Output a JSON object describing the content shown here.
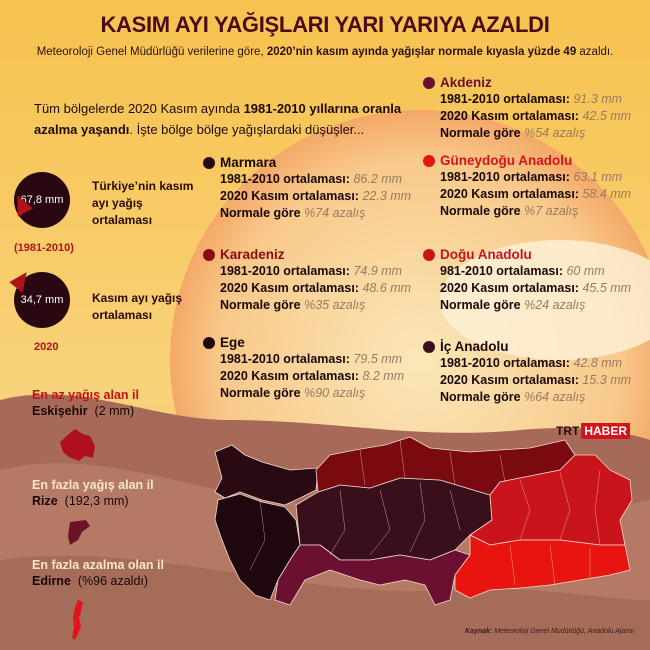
{
  "title": "KASIM AYI YAĞIŞLARI YARI YARIYA AZALDI",
  "subtitle": {
    "pre": "Meteoroloji Genel Müdürlüğü verilerine göre, ",
    "bold": "2020’nin kasım ayında yağışlar normale kıyasla yüzde 49",
    "post": " azaldı."
  },
  "intro": {
    "pre": "Tüm bölgelerde 2020 Kasım ayında ",
    "bold": "1981-2010 yıllarına oranla azalma yaşandı",
    "post": ". İşte bölge bölge yağışlardaki düşüşler..."
  },
  "turkey": {
    "avg_value": "67,8 mm",
    "avg_label": "Türkiye’nin kasım ayı yağış ortalaması",
    "avg_period": "(1981-2010)",
    "nov_value": "34,7 mm",
    "nov_label": "Kasım ayı yağış ortalaması",
    "nov_year": "2020"
  },
  "regions": [
    {
      "name": "Marmara",
      "color": "#2a0a12",
      "name_color": "#1a0808",
      "l1": "1981-2010 ortalaması:",
      "v1": "86.2 mm",
      "l2": "2020 Kasım ortalaması:",
      "v2": "22.3 mm",
      "l3": "Normale göre",
      "v3": "%74 azalış"
    },
    {
      "name": "Karadeniz",
      "color": "#8a0c12",
      "name_color": "#8a0c12",
      "l1": "1981-2010 ortalaması:",
      "v1": "74.9 mm",
      "l2": "2020 Kasım ortalaması:",
      "v2": "48.6 mm",
      "l3": "Normale göre",
      "v3": "%35 azalış"
    },
    {
      "name": "Ege",
      "color": "#1e070d",
      "name_color": "#1a0808",
      "l1": "1981-2010 ortalaması:",
      "v1": "79.5 mm",
      "l2": "2020 Kasım ortalaması:",
      "v2": "8.2 mm",
      "l3": "Normale göre",
      "v3": "%90 azalış"
    },
    {
      "name": "Akdeniz",
      "color": "#6b1030",
      "name_color": "#6b1030",
      "l1": "1981-2010 ortalaması:",
      "v1": "91.3 mm",
      "l2": "2020 Kasım ortalaması:",
      "v2": "42.5 mm",
      "l3": "Normale göre",
      "v3": "%54 azalış"
    },
    {
      "name": "Güneydoğu Anadolu",
      "color": "#e8140f",
      "name_color": "#d3141c",
      "l1": "1981-2010 ortalaması:",
      "v1": "63.1 mm",
      "l2": "2020 Kasım ortalaması:",
      "v2": "58.4 mm",
      "l3": "Normale göre",
      "v3": "%7 azalış"
    },
    {
      "name": "Doğu Anadolu",
      "color": "#c8141a",
      "name_color": "#c8141a",
      "l1": "981-2010 ortalaması:",
      "v1": "60 mm",
      "l2": "2020 Kasım ortalaması:",
      "v2": "45.5 mm",
      "l3": "Normale göre",
      "v3": "%24 azalış"
    },
    {
      "name": "İç Anadolu",
      "color": "#3a0f1c",
      "name_color": "#1a0808",
      "l1": "1981-2010 ortalaması:",
      "v1": "42.8 mm",
      "l2": "2020 Kasım ortalaması:",
      "v2": "15.3 mm",
      "l3": "Normale göre",
      "v3": "%64 azalış"
    }
  ],
  "records": [
    {
      "heading": "En az yağış alan il",
      "heading_color": "#c0141a",
      "city": "Eskişehir",
      "value": "(2 mm)",
      "shape_color": "#b0101e"
    },
    {
      "heading": "En fazla yağış alan il",
      "heading_color": "#fbe6c8",
      "city": "Rize",
      "value": "(192,3 mm)",
      "shape_color": "#6a1226"
    },
    {
      "heading": "En fazla azalma olan il",
      "heading_color": "#fbe6c8",
      "city": "Edirne",
      "value": "(%96 azaldı)",
      "shape_color": "#e0141a"
    }
  ],
  "logo": {
    "a": "TRT",
    "b": "HABER"
  },
  "source": {
    "label": "Kaynak:",
    "text": "Meteoroloji Genel Müdürlüğü, Anadolu Ajansı"
  }
}
